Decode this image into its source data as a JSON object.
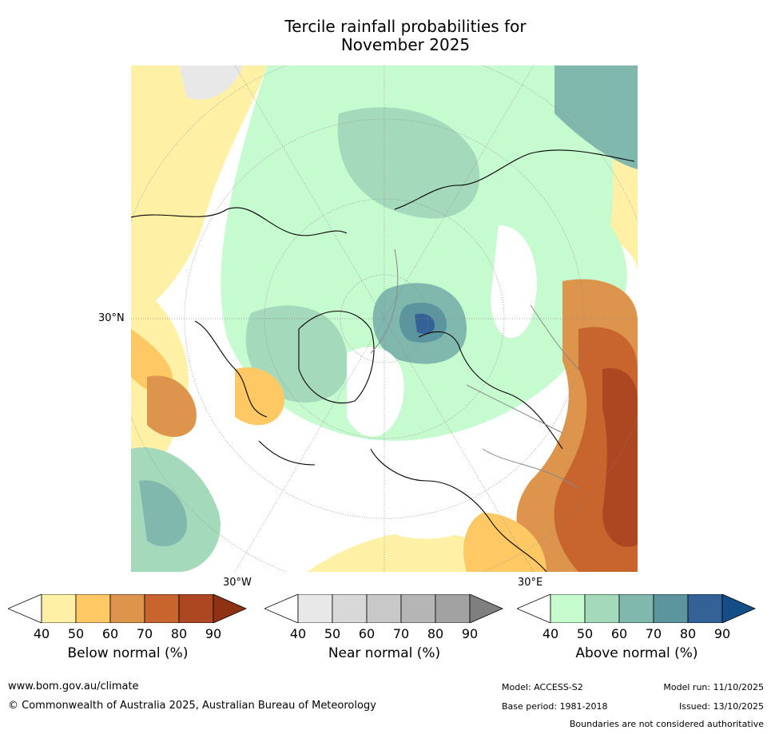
{
  "title_line1": "Tercile rainfall probabilities for",
  "title_line2": "November 2025",
  "map": {
    "projection": "north-polar-stereographic",
    "labels": {
      "lat_30n": "30°N",
      "lon_30w": "30°W",
      "lon_30e": "30°E"
    }
  },
  "colorbars": [
    {
      "title": "Below normal (%)",
      "ticks": [
        "40",
        "50",
        "60",
        "70",
        "80",
        "90"
      ],
      "colors": [
        "#fef0a5",
        "#fec964",
        "#dd944d",
        "#c8652f",
        "#ac4721",
        "#8f3213"
      ]
    },
    {
      "title": "Near normal (%)",
      "ticks": [
        "40",
        "50",
        "60",
        "70",
        "80",
        "90"
      ],
      "colors": [
        "#e8e8e8",
        "#d8d8d8",
        "#c8c8c8",
        "#b5b5b5",
        "#a2a2a2",
        "#7f7f7f"
      ]
    },
    {
      "title": "Above normal (%)",
      "ticks": [
        "40",
        "50",
        "60",
        "70",
        "80",
        "90"
      ],
      "colors": [
        "#c6fbcf",
        "#a5d9bb",
        "#80b8ad",
        "#5d959f",
        "#346297",
        "#154d87"
      ]
    }
  ],
  "footer": {
    "website": "www.bom.gov.au/climate",
    "copyright": "© Commonwealth of Australia 2025, Australian Bureau of Meteorology",
    "model": "Model: ACCESS-S2",
    "base_period": "Base period: 1981-2018",
    "model_run": "Model run: 11/10/2025",
    "issued": "Issued: 13/10/2025",
    "disclaimer": "Boundaries are not considered authoritative"
  }
}
